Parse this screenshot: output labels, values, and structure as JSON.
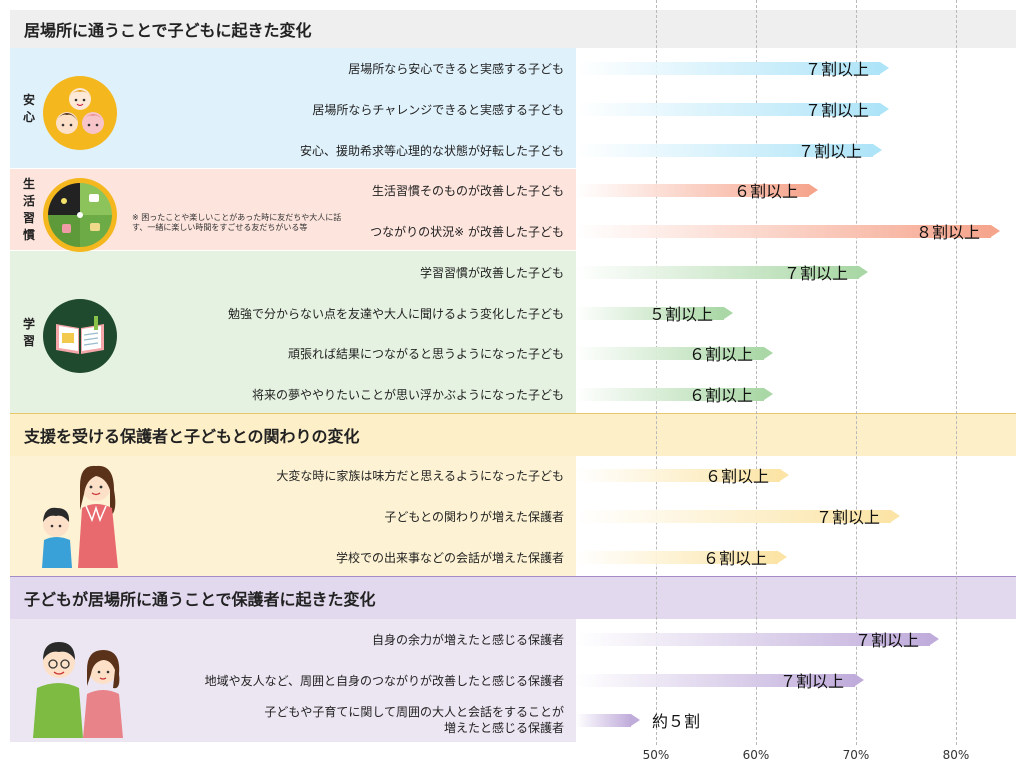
{
  "chart_data": {
    "type": "bar",
    "orientation": "horizontal",
    "x_ticks": [
      "50%",
      "60%",
      "70%",
      "80%"
    ],
    "xlim": [
      42,
      86
    ],
    "grid": "vertical dashed",
    "sections": [
      {
        "title": "居場所に通うことで子どもに起きた変化",
        "groups": [
          {
            "name": "安心",
            "color": "#aee4f8",
            "items": [
              {
                "label": "居場所なら安心できると実感する子ども",
                "value": 73.3,
                "text": "７割以上"
              },
              {
                "label": "居場所ならチャレンジできると実感する子ども",
                "value": 73.3,
                "text": "７割以上"
              },
              {
                "label": "安心、援助希求等心理的な状態が好転した子ども",
                "value": 72.6,
                "text": "７割以上"
              }
            ]
          },
          {
            "name": "生活習慣",
            "color": "#f6a58d",
            "note": "※ 困ったことや楽しいことがあった時に友だちや大人に話す、一緒に楽しい時間をすごせる友だちがいる等",
            "items": [
              {
                "label": "生活習慣そのものが改善した子ども",
                "value": 66.2,
                "text": "６割以上"
              },
              {
                "label": "つながりの状況※ が改善した子ども",
                "value": 84.4,
                "text": "８割以上"
              }
            ]
          },
          {
            "name": "学習",
            "color": "#a9d7a5",
            "items": [
              {
                "label": "学習習慣が改善した子ども",
                "value": 71.2,
                "text": "７割以上"
              },
              {
                "label": "勉強で分からない点を友達や大人に聞けるよう変化した子ども",
                "value": 57.7,
                "text": "５割以上"
              },
              {
                "label": "頑張れば結果につながると思うようになった子ども",
                "value": 61.7,
                "text": "６割以上"
              },
              {
                "label": "将来の夢ややりたいことが思い浮かぶようになった子ども",
                "value": 61.7,
                "text": "６割以上"
              }
            ]
          }
        ]
      },
      {
        "title": "支援を受ける保護者と子どもとの関わりの変化",
        "groups": [
          {
            "name": "",
            "color": "#fbe4a5",
            "items": [
              {
                "label": "大変な時に家族は味方だと思えるようになった子ども",
                "value": 63.3,
                "text": "６割以上"
              },
              {
                "label": "子どもとの関わりが増えた保護者",
                "value": 74.4,
                "text": "７割以上"
              },
              {
                "label": "学校での出来事などの会話が増えた保護者",
                "value": 63.1,
                "text": "６割以上"
              }
            ]
          }
        ]
      },
      {
        "title": "子どもが居場所に通うことで保護者に起きた変化",
        "groups": [
          {
            "name": "",
            "color": "#c0acdb",
            "items": [
              {
                "label": "自身の余力が増えたと感じる保護者",
                "value": 78.3,
                "text": "７割以上"
              },
              {
                "label": "地域や友人など、周囲と自身のつながりが改善したと感じる保護者",
                "value": 70.8,
                "text": "７割以上"
              },
              {
                "label": "子どもや子育てに関して周囲の大人と会話をすることが\n増えたと感じる保護者",
                "value": 48.4,
                "text": "約５割"
              }
            ]
          }
        ]
      }
    ]
  },
  "icons": [
    "kids-faces-icon",
    "daily-life-clock-icon",
    "notebook-study-icon",
    "mother-and-child-icon",
    "parents-couple-icon"
  ],
  "colors": {
    "anshin_bg": "#dff1fb",
    "seikatsu_bg": "#fde4dd",
    "gakushu_bg": "#e6f2e1",
    "parent_child_bg": "#fdf3d4",
    "parent_child_header": "#fdefc8",
    "parent_bg": "#ece6f3",
    "parent_header": "#e2d9ee",
    "top_header": "#efefef"
  }
}
